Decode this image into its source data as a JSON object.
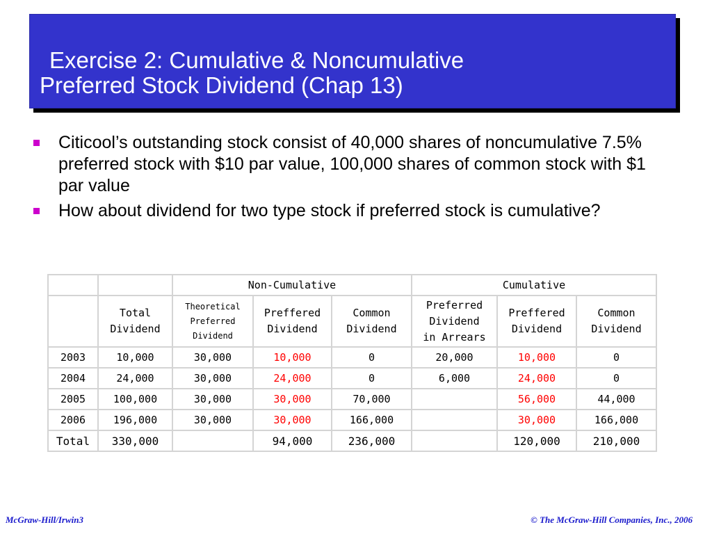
{
  "title": {
    "line1": "Exercise 2: Cumulative & Noncumulative",
    "line2": "Preferred Stock Dividend (Chap 13)"
  },
  "bullets": [
    "Citicool’s outstanding stock consist of 40,000 shares of noncumulative 7.5% preferred stock with $10 par value, 100,000 shares of common stock with $1 par value",
    "How about dividend for two type stock if preferred stock is cumulative?"
  ],
  "colors": {
    "title_bg": "#3333cc",
    "bullet": "#cc00cc",
    "highlight": "#ff0000",
    "footer": "#1a1acc"
  },
  "table": {
    "group_headers": {
      "noncumulative": "Non-Cumulative",
      "cumulative": "Cumulative"
    },
    "headers": {
      "total_dividend": [
        "Total",
        "Dividend"
      ],
      "theoretical_preferred_dividend": [
        "Theoretical",
        "Preferred",
        "Dividend"
      ],
      "nc_preffered_dividend": [
        "Preffered",
        "Dividend"
      ],
      "nc_common_dividend": [
        "Common",
        "Dividend"
      ],
      "preferred_dividend_in_arrears": [
        "Preferred",
        "Dividend",
        "in Arrears"
      ],
      "c_preffered_dividend": [
        "Preffered",
        "Dividend"
      ],
      "c_common_dividend": [
        "Common",
        "Dividend"
      ]
    },
    "rows": [
      [
        "2003",
        "10,000",
        "30,000",
        "10,000",
        "0",
        "20,000",
        "10,000",
        "0"
      ],
      [
        "2004",
        "24,000",
        "30,000",
        "24,000",
        "0",
        "6,000",
        "24,000",
        "0"
      ],
      [
        "2005",
        "100,000",
        "30,000",
        "30,000",
        "70,000",
        "",
        "56,000",
        "44,000"
      ],
      [
        "2006",
        "196,000",
        "30,000",
        "30,000",
        "166,000",
        "",
        "30,000",
        "166,000"
      ]
    ],
    "total": [
      "Total",
      "330,000",
      "",
      "94,000",
      "236,000",
      "",
      "120,000",
      "210,000"
    ]
  },
  "footer": {
    "left": "McGraw-Hill/Irwin3",
    "right": "© The McGraw-Hill Companies, Inc., 2006"
  }
}
